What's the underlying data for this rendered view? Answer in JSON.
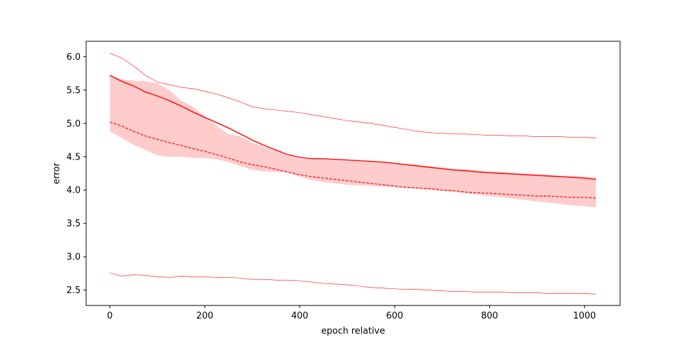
{
  "chart_data": {
    "type": "line",
    "title": "",
    "xlabel": "epoch relative",
    "ylabel": "error",
    "xlim": [
      -50,
      1075
    ],
    "ylim": [
      2.27,
      6.23
    ],
    "xticks": [
      0,
      200,
      400,
      600,
      800,
      1000
    ],
    "yticks": [
      2.5,
      3.0,
      3.5,
      4.0,
      4.5,
      5.0,
      5.5,
      6.0
    ],
    "grid": false,
    "legend": "none",
    "colors": {
      "line": "#ff0000",
      "band": "#ff0000",
      "band_opacity": 0.2
    },
    "x": [
      0,
      25,
      50,
      75,
      100,
      125,
      150,
      175,
      200,
      225,
      250,
      275,
      300,
      325,
      350,
      375,
      400,
      425,
      450,
      475,
      500,
      525,
      550,
      575,
      600,
      625,
      650,
      675,
      700,
      725,
      750,
      775,
      800,
      825,
      850,
      875,
      900,
      925,
      950,
      975,
      1000,
      1024
    ],
    "series": [
      {
        "role": "mean_solid",
        "style": "solid",
        "values": [
          5.72,
          5.63,
          5.56,
          5.47,
          5.41,
          5.34,
          5.26,
          5.17,
          5.09,
          5.01,
          4.93,
          4.84,
          4.75,
          4.67,
          4.6,
          4.53,
          4.49,
          4.47,
          4.47,
          4.46,
          4.45,
          4.44,
          4.43,
          4.42,
          4.4,
          4.38,
          4.36,
          4.34,
          4.32,
          4.3,
          4.29,
          4.27,
          4.26,
          4.25,
          4.24,
          4.23,
          4.22,
          4.21,
          4.2,
          4.19,
          4.18,
          4.16
        ]
      },
      {
        "role": "mean_dashed",
        "style": "dashed",
        "values": [
          5.02,
          4.96,
          4.88,
          4.81,
          4.76,
          4.71,
          4.67,
          4.62,
          4.58,
          4.53,
          4.48,
          4.42,
          4.38,
          4.35,
          4.31,
          4.27,
          4.23,
          4.2,
          4.18,
          4.16,
          4.14,
          4.12,
          4.1,
          4.08,
          4.06,
          4.04,
          4.03,
          4.02,
          4.0,
          3.99,
          3.97,
          3.96,
          3.95,
          3.94,
          3.93,
          3.92,
          3.91,
          3.91,
          3.9,
          3.89,
          3.89,
          3.88
        ]
      },
      {
        "role": "band_upper",
        "values": [
          5.72,
          5.66,
          5.64,
          5.63,
          5.6,
          5.5,
          5.34,
          5.25,
          5.1,
          4.96,
          4.84,
          4.8,
          4.71,
          4.65,
          4.59,
          4.52,
          4.47,
          4.46,
          4.46,
          4.45,
          4.44,
          4.43,
          4.42,
          4.42,
          4.41,
          4.39,
          4.38,
          4.36,
          4.34,
          4.32,
          4.31,
          4.3,
          4.28,
          4.27,
          4.26,
          4.25,
          4.24,
          4.23,
          4.22,
          4.21,
          4.2,
          4.19
        ]
      },
      {
        "role": "band_lower",
        "values": [
          4.88,
          4.78,
          4.68,
          4.6,
          4.52,
          4.5,
          4.5,
          4.48,
          4.48,
          4.46,
          4.42,
          4.36,
          4.3,
          4.28,
          4.27,
          4.26,
          4.2,
          4.15,
          4.12,
          4.1,
          4.08,
          4.07,
          4.06,
          4.05,
          4.04,
          4.03,
          4.02,
          4.0,
          3.99,
          3.97,
          3.95,
          3.93,
          3.91,
          3.89,
          3.87,
          3.85,
          3.83,
          3.81,
          3.79,
          3.77,
          3.76,
          3.74
        ]
      },
      {
        "role": "envelope_upper",
        "style": "thin",
        "values": [
          6.05,
          5.98,
          5.86,
          5.72,
          5.62,
          5.58,
          5.54,
          5.52,
          5.48,
          5.44,
          5.38,
          5.32,
          5.25,
          5.22,
          5.2,
          5.18,
          5.16,
          5.13,
          5.1,
          5.07,
          5.04,
          5.02,
          5.0,
          4.97,
          4.94,
          4.91,
          4.88,
          4.86,
          4.85,
          4.84,
          4.84,
          4.83,
          4.82,
          4.82,
          4.81,
          4.81,
          4.8,
          4.8,
          4.8,
          4.79,
          4.79,
          4.78
        ]
      },
      {
        "role": "envelope_lower",
        "style": "thin",
        "values": [
          2.76,
          2.71,
          2.73,
          2.72,
          2.7,
          2.69,
          2.71,
          2.7,
          2.7,
          2.69,
          2.69,
          2.68,
          2.66,
          2.66,
          2.65,
          2.65,
          2.64,
          2.62,
          2.6,
          2.59,
          2.58,
          2.56,
          2.54,
          2.53,
          2.52,
          2.51,
          2.51,
          2.5,
          2.49,
          2.48,
          2.48,
          2.47,
          2.47,
          2.47,
          2.46,
          2.46,
          2.46,
          2.45,
          2.45,
          2.45,
          2.45,
          2.44
        ]
      }
    ]
  }
}
